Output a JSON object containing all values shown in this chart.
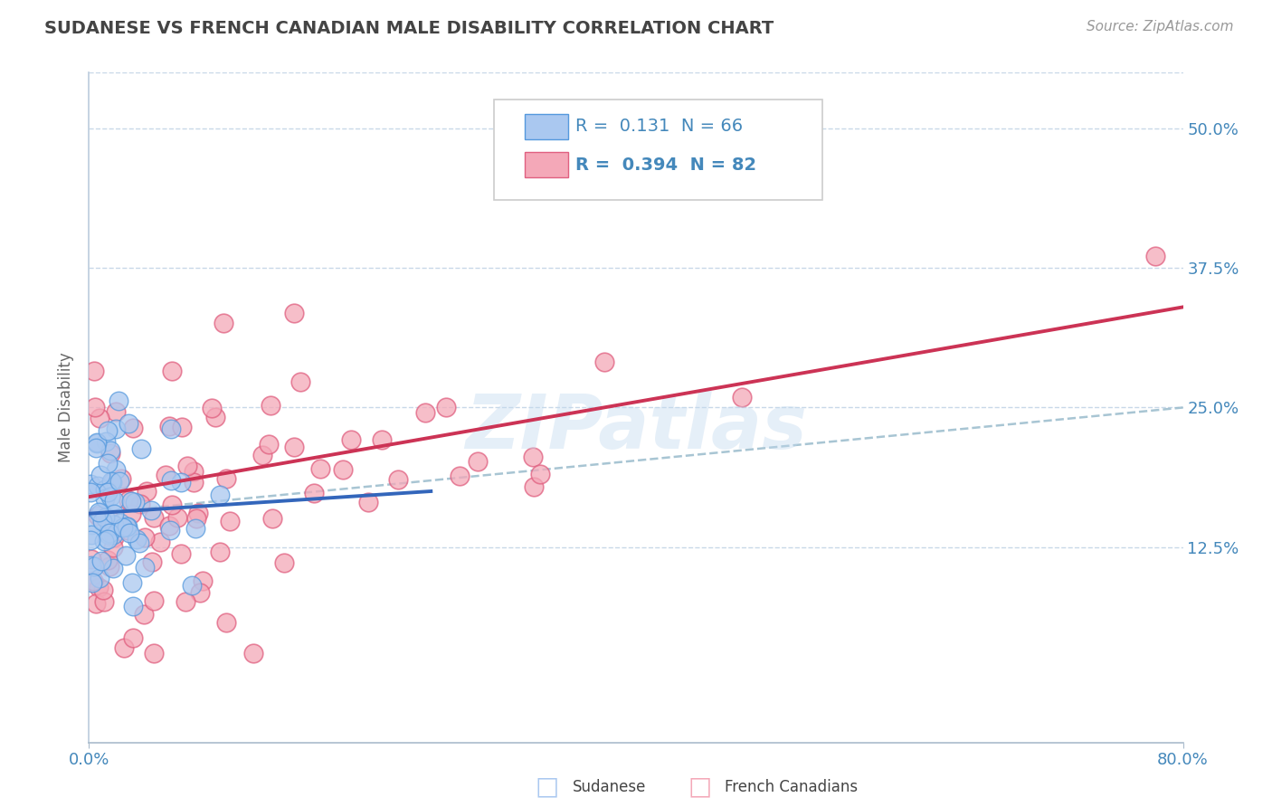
{
  "title": "SUDANESE VS FRENCH CANADIAN MALE DISABILITY CORRELATION CHART",
  "source": "Source: ZipAtlas.com",
  "ylabel": "Male Disability",
  "xlim": [
    0.0,
    0.8
  ],
  "ylim": [
    -0.05,
    0.55
  ],
  "yticks": [
    0.125,
    0.25,
    0.375,
    0.5
  ],
  "ytick_labels": [
    "12.5%",
    "25.0%",
    "37.5%",
    "50.0%"
  ],
  "xticks": [
    0.0,
    0.8
  ],
  "xtick_labels": [
    "0.0%",
    "80.0%"
  ],
  "legend_R1": "0.131",
  "legend_N1": "66",
  "legend_R2": "0.394",
  "legend_N2": "82",
  "color_sudanese_fill": "#aac8f0",
  "color_sudanese_edge": "#5599dd",
  "color_french_fill": "#f4a8b8",
  "color_french_edge": "#e06080",
  "color_sudanese_line": "#3366bb",
  "color_french_line": "#cc3355",
  "color_dashed": "#99bbcc",
  "watermark": "ZIPatlas",
  "background_color": "#ffffff",
  "grid_color": "#c8d8e8"
}
